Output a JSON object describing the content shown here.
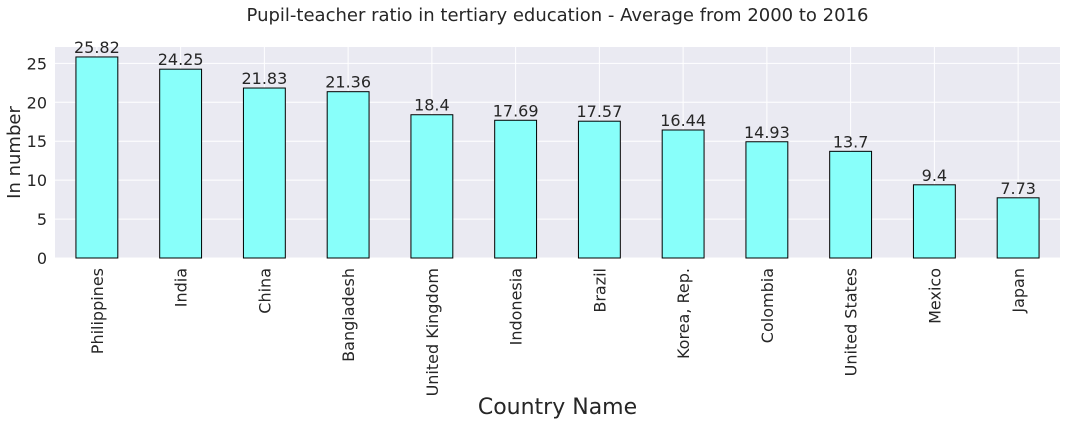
{
  "chart_data": {
    "type": "bar",
    "title": "Pupil-teacher ratio in tertiary education - Average from 2000 to 2016",
    "xlabel": "Country Name",
    "ylabel": "In number",
    "categories": [
      "Philippines",
      "India",
      "China",
      "Bangladesh",
      "United Kingdom",
      "Indonesia",
      "Brazil",
      "Korea, Rep.",
      "Colombia",
      "United States",
      "Mexico",
      "Japan"
    ],
    "values": [
      25.82,
      24.25,
      21.83,
      21.36,
      18.4,
      17.69,
      17.57,
      16.44,
      14.93,
      13.7,
      9.4,
      7.73
    ],
    "data_labels": [
      "25.82",
      "24.25",
      "21.83",
      "21.36",
      "18.4",
      "17.69",
      "17.57",
      "16.44",
      "14.93",
      "13.7",
      "9.4",
      "7.73"
    ],
    "ylim": [
      0,
      27.1
    ],
    "yticks": [
      0,
      5,
      10,
      15,
      20,
      25
    ],
    "grid": true,
    "colors": {
      "bar": "#88fffa",
      "bar_edge": "#000000",
      "plot_background": "#eaeaf2",
      "grid": "#ffffff"
    }
  }
}
